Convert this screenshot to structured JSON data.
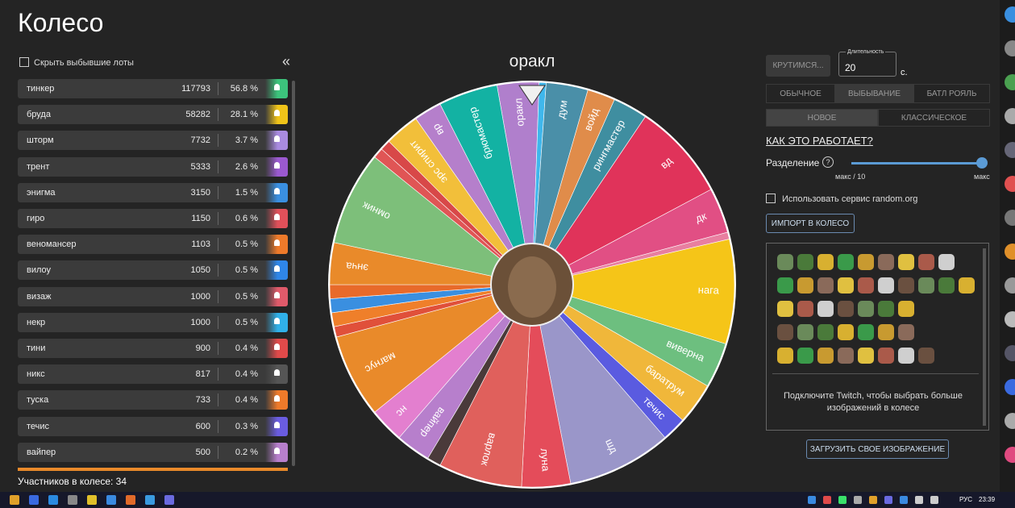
{
  "header": {
    "title": "Колесо"
  },
  "sidebar": {
    "hide_label": "Скрыть выбывшие лоты",
    "collapse": "«",
    "participants": "Участников в колесе: 34",
    "rows": [
      {
        "name": "тинкер",
        "amount": "117793",
        "percent": "56.8 %",
        "color": "#3cc47c"
      },
      {
        "name": "бруда",
        "amount": "58282",
        "percent": "28.1 %",
        "color": "#f0c419"
      },
      {
        "name": "шторм",
        "amount": "7732",
        "percent": "3.7 %",
        "color": "#a98be0"
      },
      {
        "name": "трент",
        "amount": "5333",
        "percent": "2.6 %",
        "color": "#9b59d0"
      },
      {
        "name": "энигма",
        "amount": "3150",
        "percent": "1.5 %",
        "color": "#3a8fe0"
      },
      {
        "name": "гиро",
        "amount": "1150",
        "percent": "0.6 %",
        "color": "#e0505a"
      },
      {
        "name": "веномансер",
        "amount": "1103",
        "percent": "0.5 %",
        "color": "#ee7a2a"
      },
      {
        "name": "вилоу",
        "amount": "1050",
        "percent": "0.5 %",
        "color": "#2f86e8"
      },
      {
        "name": "визаж",
        "amount": "1000",
        "percent": "0.5 %",
        "color": "#e05a6a"
      },
      {
        "name": "некр",
        "amount": "1000",
        "percent": "0.5 %",
        "color": "#30b0e8"
      },
      {
        "name": "тини",
        "amount": "900",
        "percent": "0.4 %",
        "color": "#e04a4a"
      },
      {
        "name": "никс",
        "amount": "817",
        "percent": "0.4 %",
        "color": "#555555"
      },
      {
        "name": "туска",
        "amount": "733",
        "percent": "0.4 %",
        "color": "#ee7a2a"
      },
      {
        "name": "течис",
        "amount": "600",
        "percent": "0.3 %",
        "color": "#6a5ce0"
      },
      {
        "name": "вайпер",
        "amount": "500",
        "percent": "0.2 %",
        "color": "#b77fcc"
      }
    ]
  },
  "wheel": {
    "winner": "оракл",
    "segments": [
      {
        "label": "оракл",
        "color": "#b07fcc"
      },
      {
        "label": null,
        "color": "#3fb7ec"
      },
      {
        "label": "дум",
        "color": "#4a8fa8"
      },
      {
        "label": "войд",
        "color": "#e08c4a"
      },
      {
        "label": "рингмастер",
        "color": "#3f8ea0"
      },
      {
        "label": "вд",
        "color": "#e0335a"
      },
      {
        "label": "дк",
        "color": "#e14f84"
      },
      {
        "label": null,
        "color": "#e87fa0"
      },
      {
        "label": "нага",
        "color": "#f5c518"
      },
      {
        "label": "виверна",
        "color": "#6dbf7f"
      },
      {
        "label": "баратрум",
        "color": "#f0b73a"
      },
      {
        "label": "течис",
        "color": "#5a5be0"
      },
      {
        "label": "шд",
        "color": "#9a96c9"
      },
      {
        "label": "луна",
        "color": "#e44c5a"
      },
      {
        "label": "варлок",
        "color": "#e0605c"
      },
      {
        "label": null,
        "color": "#4a3a3a"
      },
      {
        "label": "вайпер",
        "color": "#b77fcc"
      },
      {
        "label": "нс",
        "color": "#e37fcf"
      },
      {
        "label": "магнус",
        "color": "#e98a2a"
      },
      {
        "label": null,
        "color": "#e0503a"
      },
      {
        "label": null,
        "color": "#ef7f2a"
      },
      {
        "label": null,
        "color": "#3a8fe0"
      },
      {
        "label": null,
        "color": "#e86a2a"
      },
      {
        "label": "энча",
        "color": "#e98a2a"
      },
      {
        "label": "омник",
        "color": "#7dbf7a"
      },
      {
        "label": null,
        "color": "#e05555"
      },
      {
        "label": null,
        "color": "#d84848"
      },
      {
        "label": "эрс спирит",
        "color": "#f2bf3a"
      },
      {
        "label": "вр",
        "color": "#b57fcb"
      },
      {
        "label": "брюмастер",
        "color": "#13b2a3"
      }
    ]
  },
  "controls": {
    "spin": "КРУТИМСЯ...",
    "duration_label": "Длительность",
    "duration": "20",
    "seconds": "с.",
    "modes": [
      "ОБЫЧНОЕ",
      "ВЫБЫВАНИЕ",
      "БАТЛ РОЯЛЬ"
    ],
    "variants": [
      "НОВОЕ",
      "КЛАССИЧЕСКОЕ"
    ],
    "how": "КАК ЭТО РАБОТАЕТ?",
    "split": "Разделение",
    "split_min": "макс / 10",
    "split_max": "макс",
    "random_org": "Использовать сервис random.org",
    "import": "ИМПОРТ В КОЛЕСО",
    "twitch": "Подключите Twitch, чтобы выбрать больше изображений в колесе",
    "upload": "ЗАГРУЗИТЬ СВОЕ ИЗОБРАЖЕНИЕ"
  },
  "taskbar": {
    "lang": "РУС",
    "time": "23:39"
  }
}
